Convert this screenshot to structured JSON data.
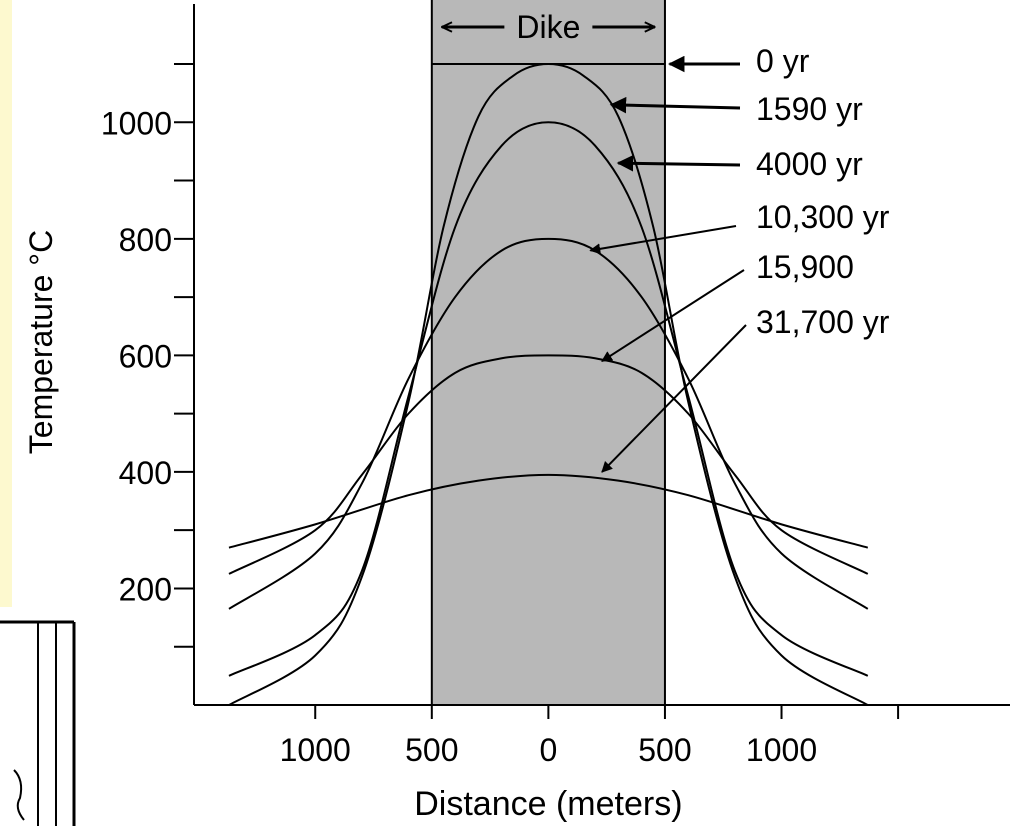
{
  "chart_data": {
    "type": "line",
    "title": "",
    "xlabel": "Distance (meters)",
    "ylabel": "Temperature °C",
    "x_tick_labels": [
      {
        "value": -1000,
        "label": "1000"
      },
      {
        "value": -500,
        "label": "500"
      },
      {
        "value": 0,
        "label": "0"
      },
      {
        "value": 500,
        "label": "500"
      },
      {
        "value": 1000,
        "label": "1000"
      }
    ],
    "y_tick_labels": [
      {
        "value": 200,
        "label": "200"
      },
      {
        "value": 400,
        "label": "400"
      },
      {
        "value": 600,
        "label": "600"
      },
      {
        "value": 800,
        "label": "800"
      },
      {
        "value": 1000,
        "label": "1000"
      }
    ],
    "xlim": [
      -1520,
      1980
    ],
    "ylim": [
      0,
      1100
    ],
    "grid": false,
    "dike": {
      "label": "Dike",
      "x_from": -500,
      "x_to": 500,
      "color": "#b8b8b8"
    },
    "series": [
      {
        "name": "0 yr",
        "kind": "step",
        "top": 1100,
        "x_from": -500,
        "x_to": 500,
        "arrow_tip": {
          "x": 520,
          "y": 1100
        }
      },
      {
        "name": "1590 yr",
        "kind": "curve",
        "x": [
          -1370,
          -1000,
          -800,
          -600,
          -450,
          -300,
          -150,
          0,
          150,
          300,
          450,
          600,
          800,
          1000,
          1370
        ],
        "y": [
          0,
          85,
          220,
          520,
          820,
          1010,
          1080,
          1100,
          1080,
          1010,
          820,
          520,
          220,
          85,
          0
        ],
        "arrow_tip": {
          "x": 270,
          "y": 1030
        }
      },
      {
        "name": "4000 yr",
        "kind": "curve",
        "x": [
          -1370,
          -1000,
          -800,
          -600,
          -400,
          -200,
          0,
          200,
          400,
          600,
          800,
          1000,
          1370
        ],
        "y": [
          50,
          120,
          230,
          530,
          820,
          960,
          1000,
          960,
          820,
          530,
          230,
          120,
          50
        ],
        "arrow_tip": {
          "x": 300,
          "y": 930
        }
      },
      {
        "name": "10,300 yr",
        "kind": "curve",
        "x": [
          -1370,
          -1000,
          -800,
          -600,
          -400,
          -200,
          0,
          200,
          400,
          600,
          800,
          1000,
          1370
        ],
        "y": [
          165,
          260,
          380,
          560,
          700,
          780,
          800,
          780,
          700,
          560,
          380,
          260,
          165
        ],
        "arrow_tip": {
          "x": 180,
          "y": 780
        }
      },
      {
        "name": "15,900",
        "kind": "curve",
        "x": [
          -1370,
          -1000,
          -800,
          -600,
          -400,
          -200,
          0,
          200,
          400,
          600,
          800,
          1000,
          1370
        ],
        "y": [
          225,
          300,
          395,
          500,
          570,
          595,
          600,
          595,
          570,
          500,
          395,
          300,
          225
        ],
        "arrow_tip": {
          "x": 230,
          "y": 590
        }
      },
      {
        "name": "31,700 yr",
        "kind": "curve",
        "x": [
          -1370,
          -1000,
          -600,
          -300,
          0,
          300,
          600,
          1000,
          1370
        ],
        "y": [
          270,
          310,
          360,
          385,
          395,
          385,
          360,
          310,
          270
        ],
        "arrow_tip": {
          "x": 230,
          "y": 400
        }
      }
    ]
  }
}
